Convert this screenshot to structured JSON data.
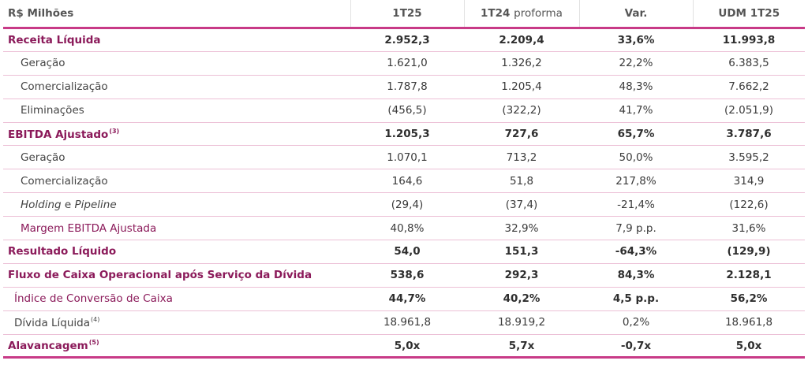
{
  "header": {
    "label": "R$ Milhões",
    "col1": "1T25",
    "col2_main": "1T24",
    "col2_sub": "proforma",
    "col3": "Var.",
    "col4": "UDM 1T25"
  },
  "rows": [
    {
      "label": "Receita Líquida",
      "v1": "2.952,3",
      "v2": "2.209,4",
      "v3": "33,6%",
      "v4": "11.993,8"
    },
    {
      "label": "Geração",
      "v1": "1.621,0",
      "v2": "1.326,2",
      "v3": "22,2%",
      "v4": "6.383,5"
    },
    {
      "label": "Comercialização",
      "v1": "1.787,8",
      "v2": "1.205,4",
      "v3": "48,3%",
      "v4": "7.662,2"
    },
    {
      "label": "Eliminações",
      "v1": "(456,5)",
      "v2": "(322,2)",
      "v3": "41,7%",
      "v4": "(2.051,9)"
    },
    {
      "label": "EBITDA Ajustado",
      "sup": "(3)",
      "v1": "1.205,3",
      "v2": "727,6",
      "v3": "65,7%",
      "v4": "3.787,6"
    },
    {
      "label": "Geração",
      "v1": "1.070,1",
      "v2": "713,2",
      "v3": "50,0%",
      "v4": "3.595,2"
    },
    {
      "label": "Comercialização",
      "v1": "164,6",
      "v2": "51,8",
      "v3": "217,8%",
      "v4": "314,9"
    },
    {
      "label_a": "Holding",
      "label_b": " e ",
      "label_c": "Pipeline",
      "v1": "(29,4)",
      "v2": "(37,4)",
      "v3": "-21,4%",
      "v4": "(122,6)"
    },
    {
      "label": "Margem EBITDA Ajustada",
      "v1": "40,8%",
      "v2": "32,9%",
      "v3": "7,9 p.p.",
      "v4": "31,6%"
    },
    {
      "label": "Resultado Líquido",
      "v1": "54,0",
      "v2": "151,3",
      "v3": "-64,3%",
      "v4": "(129,9)"
    },
    {
      "label": "Fluxo de Caixa Operacional após Serviço da Dívida",
      "v1": "538,6",
      "v2": "292,3",
      "v3": "84,3%",
      "v4": "2.128,1"
    },
    {
      "label": "Índice de Conversão de Caixa",
      "v1": "44,7%",
      "v2": "40,2%",
      "v3": "4,5 p.p.",
      "v4": "56,2%"
    },
    {
      "label": "Dívida Líquida",
      "sup": "(4)",
      "v1": "18.961,8",
      "v2": "18.919,2",
      "v3": "0,2%",
      "v4": "18.961,8"
    },
    {
      "label": "Alavancagem",
      "sup": "(5)",
      "v1": "5,0x",
      "v2": "5,7x",
      "v3": "-0,7x",
      "v4": "5,0x"
    }
  ]
}
